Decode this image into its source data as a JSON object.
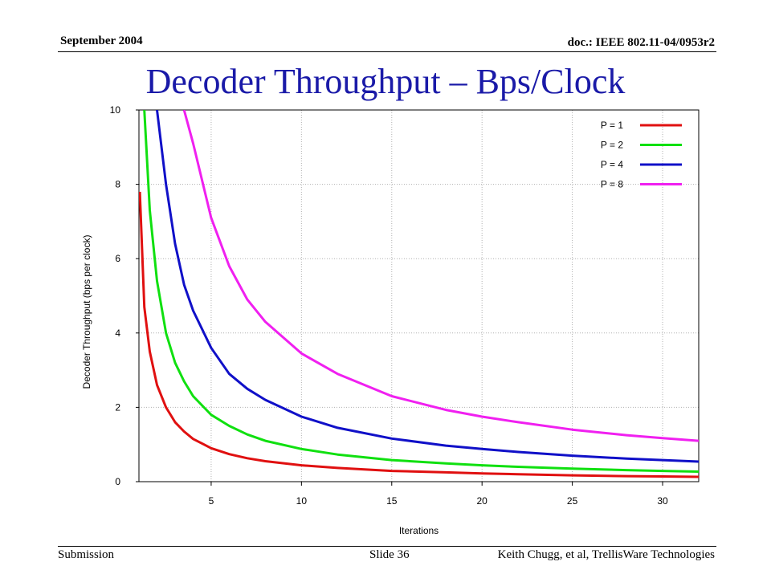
{
  "header": {
    "date": "September 2004",
    "doc_id": "doc.: IEEE 802.11-04/0953r2"
  },
  "slide_title": "Decoder Throughput – Bps/Clock",
  "footer": {
    "left": "Submission",
    "center": "Slide 36",
    "right": "Keith Chugg, et al, TrellisWare  Technologies"
  },
  "chart_data": {
    "type": "line",
    "title": "",
    "xlabel": "Iterations",
    "ylabel": "Decoder Throughput (bps per clock)",
    "xlim": [
      1,
      32
    ],
    "ylim": [
      0,
      10
    ],
    "xticks": [
      5,
      10,
      15,
      20,
      25,
      30
    ],
    "yticks": [
      0,
      2,
      4,
      6,
      8,
      10
    ],
    "grid": true,
    "legend_position": "top-right",
    "x": [
      1.05,
      1.3,
      1.6,
      2,
      2.5,
      3,
      3.5,
      4,
      5,
      6,
      7,
      8,
      10,
      12,
      15,
      18,
      20,
      22,
      25,
      28,
      30,
      32
    ],
    "series": [
      {
        "name": "P = 1",
        "color": "#e01010",
        "values": [
          7.8,
          4.7,
          3.5,
          2.6,
          2.0,
          1.6,
          1.35,
          1.15,
          0.9,
          0.74,
          0.63,
          0.55,
          0.44,
          0.37,
          0.29,
          0.25,
          0.22,
          0.2,
          0.17,
          0.15,
          0.14,
          0.13
        ]
      },
      {
        "name": "P = 2",
        "color": "#10e010",
        "values": [
          null,
          10,
          7.3,
          5.4,
          4.0,
          3.2,
          2.7,
          2.3,
          1.8,
          1.5,
          1.27,
          1.1,
          0.88,
          0.73,
          0.58,
          0.49,
          0.44,
          0.4,
          0.35,
          0.31,
          0.29,
          0.27
        ]
      },
      {
        "name": "P = 4",
        "color": "#1010c8",
        "values": [
          null,
          null,
          null,
          10,
          8.0,
          6.4,
          5.3,
          4.6,
          3.6,
          2.9,
          2.5,
          2.2,
          1.75,
          1.45,
          1.16,
          0.97,
          0.88,
          0.8,
          0.7,
          0.62,
          0.58,
          0.54
        ]
      },
      {
        "name": "P = 8",
        "color": "#f020f0",
        "values": [
          null,
          null,
          null,
          null,
          null,
          null,
          10,
          9.1,
          7.1,
          5.8,
          4.9,
          4.3,
          3.45,
          2.9,
          2.3,
          1.93,
          1.75,
          1.6,
          1.4,
          1.25,
          1.17,
          1.1
        ]
      }
    ]
  }
}
